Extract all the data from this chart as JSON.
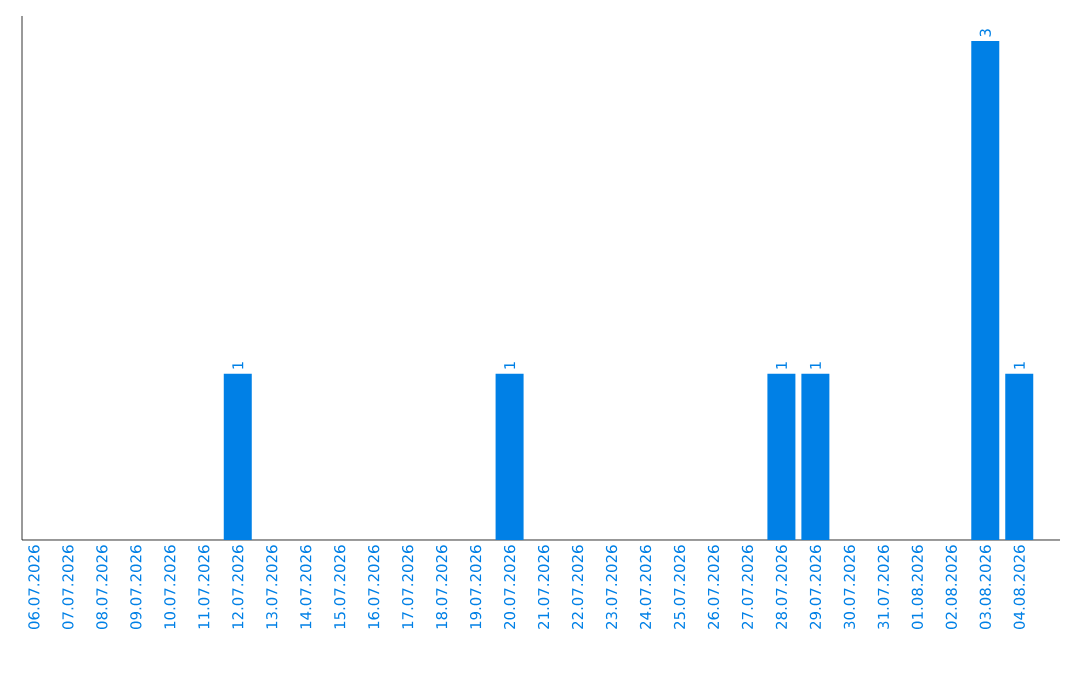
{
  "chart_data": {
    "type": "bar",
    "categories": [
      "06.07.2026",
      "07.07.2026",
      "08.07.2026",
      "09.07.2026",
      "10.07.2026",
      "11.07.2026",
      "12.07.2026",
      "13.07.2026",
      "14.07.2026",
      "15.07.2026",
      "16.07.2026",
      "17.07.2026",
      "18.07.2026",
      "19.07.2026",
      "20.07.2026",
      "21.07.2026",
      "22.07.2026",
      "23.07.2026",
      "24.07.2026",
      "25.07.2026",
      "26.07.2026",
      "27.07.2026",
      "28.07.2026",
      "29.07.2026",
      "30.07.2026",
      "31.07.2026",
      "01.08.2026",
      "02.08.2026",
      "03.08.2026",
      "04.08.2026"
    ],
    "values": [
      0,
      0,
      0,
      0,
      0,
      0,
      1,
      0,
      0,
      0,
      0,
      0,
      0,
      0,
      1,
      0,
      0,
      0,
      0,
      0,
      0,
      0,
      1,
      1,
      0,
      0,
      0,
      0,
      3,
      1
    ],
    "value_labels": [
      null,
      null,
      null,
      null,
      null,
      null,
      "1",
      null,
      null,
      null,
      null,
      null,
      null,
      null,
      "1",
      null,
      null,
      null,
      null,
      null,
      null,
      null,
      "1",
      "1",
      null,
      null,
      null,
      null,
      "3",
      "1"
    ],
    "color": "#0080e6",
    "tick_labels": "x"
  }
}
